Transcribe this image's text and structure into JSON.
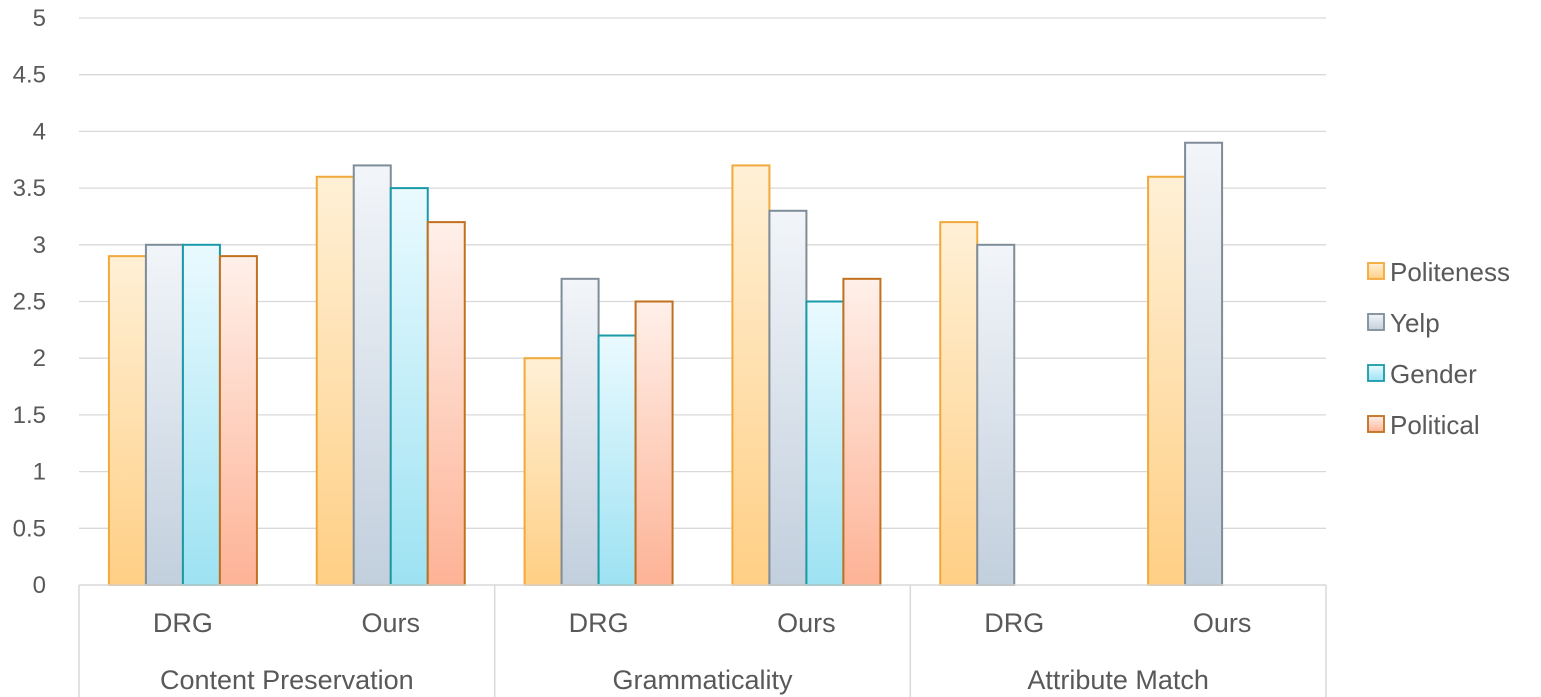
{
  "chart_data": {
    "type": "bar",
    "groups": [
      {
        "label": "Content Preservation",
        "subcategories": [
          "DRG",
          "Ours"
        ]
      },
      {
        "label": "Grammaticality",
        "subcategories": [
          "DRG",
          "Ours"
        ]
      },
      {
        "label": "Attribute Match",
        "subcategories": [
          "DRG",
          "Ours"
        ]
      }
    ],
    "categories": [
      "DRG",
      "Ours",
      "DRG",
      "Ours",
      "DRG",
      "Ours"
    ],
    "series": [
      {
        "name": "Politeness",
        "values": [
          2.9,
          3.6,
          2.0,
          3.7,
          3.2,
          3.6
        ],
        "fill_top": "#fff0d6",
        "fill_bottom": "#ffcf85",
        "stroke": "#f2a93b"
      },
      {
        "name": "Yelp",
        "values": [
          3.0,
          3.7,
          2.7,
          3.3,
          3.0,
          3.9
        ],
        "fill_top": "#f2f5f9",
        "fill_bottom": "#c2cfdd",
        "stroke": "#7f8c99"
      },
      {
        "name": "Gender",
        "values": [
          3.0,
          3.5,
          2.2,
          2.5,
          0,
          0
        ],
        "fill_top": "#eafaff",
        "fill_bottom": "#9de2f2",
        "stroke": "#1a9aa8"
      },
      {
        "name": "Political",
        "values": [
          2.9,
          3.2,
          2.5,
          2.7,
          0,
          0
        ],
        "fill_top": "#fff0ea",
        "fill_bottom": "#fdb396",
        "stroke": "#c0701e"
      }
    ],
    "y_ticks": [
      "0",
      "0.5",
      "1",
      "1.5",
      "2",
      "2.5",
      "3",
      "3.5",
      "4",
      "4.5",
      "5"
    ],
    "ylim": [
      0,
      5
    ],
    "grid": true,
    "legend_position": "right",
    "title": "",
    "xlabel": "",
    "ylabel": ""
  }
}
